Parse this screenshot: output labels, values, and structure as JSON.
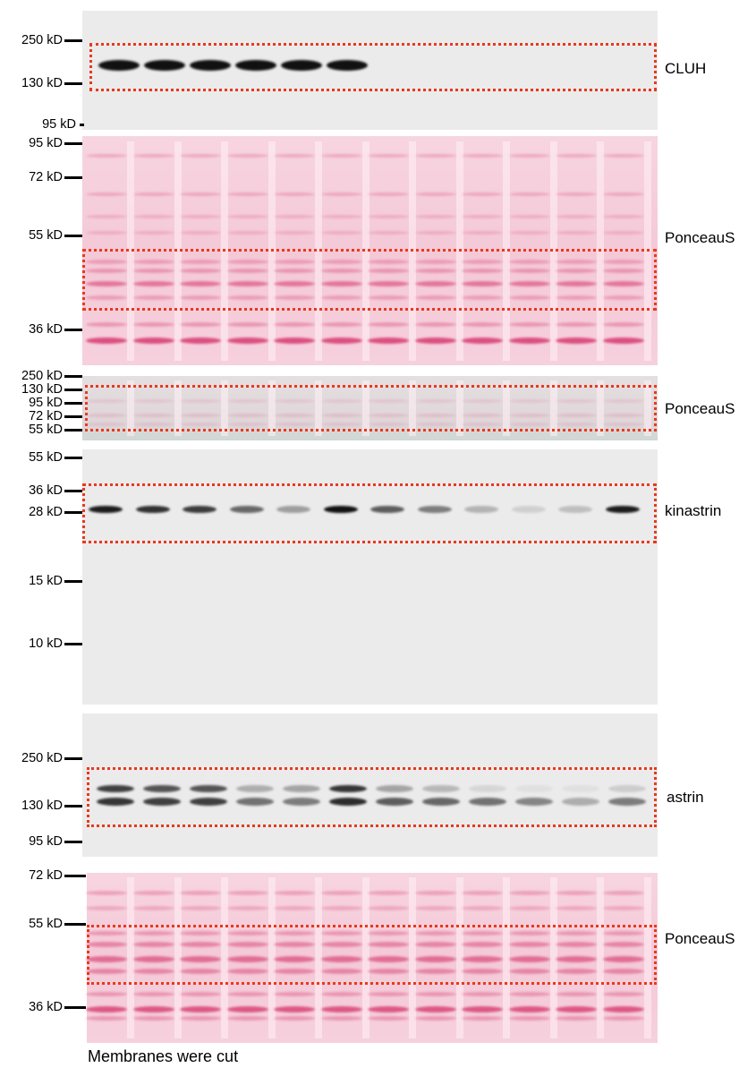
{
  "panels": [
    {
      "id": "cluh",
      "label": "CLUH",
      "markers": [
        "250 kD",
        "130 kD",
        "95 kD"
      ]
    },
    {
      "id": "ponceau1",
      "label": "PonceauS",
      "markers": [
        "95 kD",
        "72 kD",
        "55 kD",
        "36 kD"
      ]
    },
    {
      "id": "ponceau2",
      "label": "PonceauS",
      "markers": [
        "250 kD",
        "130 kD",
        "95 kD",
        "72 kD",
        "55 kD"
      ]
    },
    {
      "id": "kinastrin",
      "label": "kinastrin",
      "markers": [
        "55 kD",
        "36 kD",
        "28 kD",
        "15 kD",
        "10 kD"
      ]
    },
    {
      "id": "astrin",
      "label": "astrin",
      "markers": [
        "250 kD",
        "130 kD",
        "95 kD"
      ]
    },
    {
      "id": "ponceau3",
      "label": "PonceauS",
      "markers": [
        "72 kD",
        "55 kD",
        "36 kD"
      ]
    }
  ],
  "band_intensity": {
    "cluh": [
      1,
      1,
      1,
      1,
      1,
      1
    ],
    "kinastrin": [
      0.95,
      0.85,
      0.8,
      0.6,
      0.35,
      1,
      0.65,
      0.5,
      0.25,
      0.12,
      0.2,
      0.95
    ],
    "astrin_upper": [
      0.85,
      0.75,
      0.75,
      0.3,
      0.35,
      0.9,
      0.35,
      0.25,
      0.1,
      0.05,
      0.05,
      0.15
    ],
    "astrin_lower": [
      0.9,
      0.85,
      0.85,
      0.6,
      0.55,
      0.95,
      0.7,
      0.65,
      0.6,
      0.5,
      0.3,
      0.55
    ]
  },
  "colors": {
    "roi": "#e8391e",
    "ponceau": "#f4c9d7",
    "blot_bg": "#ebebeb"
  },
  "footer": "Membranes were cut"
}
